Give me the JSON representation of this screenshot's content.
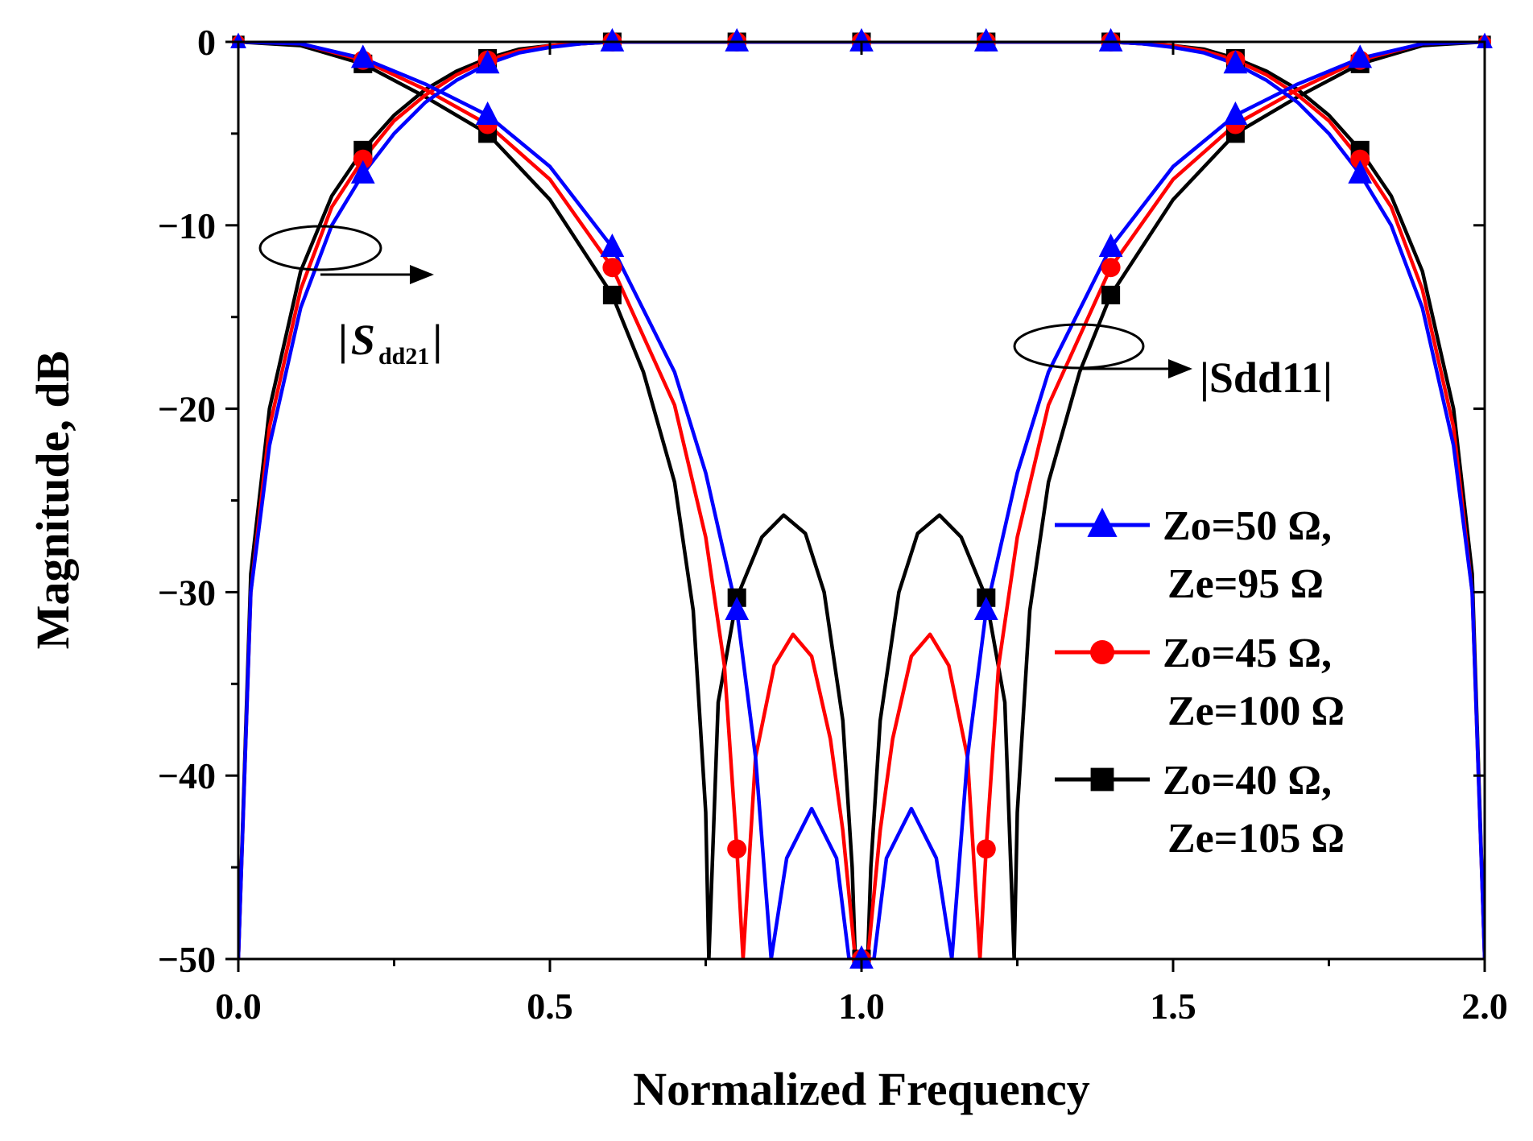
{
  "chart_data": {
    "type": "line",
    "xlabel": "Normalized Frequency",
    "ylabel": "Magnitude, dB",
    "xlim": [
      0,
      2
    ],
    "ylim": [
      -50,
      0
    ],
    "xticks": [
      0.0,
      0.5,
      1.0,
      1.5,
      2.0
    ],
    "xtick_labels": [
      "0.0",
      "0.5",
      "1.0",
      "1.5",
      "2.0"
    ],
    "yticks": [
      0,
      -10,
      -20,
      -30,
      -40,
      -50
    ],
    "ytick_labels": [
      "0",
      "−10",
      "−20",
      "−30",
      "−40",
      "−50"
    ],
    "x_marker_positions": [
      0.2,
      0.4,
      0.6,
      0.8,
      1.0,
      1.2,
      1.4,
      1.6,
      1.8
    ],
    "grid": false,
    "legend_position": "right",
    "series": [
      {
        "name_line1": "Zo=50 Ω,",
        "name_line2": "Ze=95 Ω",
        "color": "#0000ff",
        "marker": "triangle",
        "sdd21": {
          "x": [
            0.0,
            0.02,
            0.05,
            0.1,
            0.15,
            0.2,
            0.25,
            0.3,
            0.35,
            0.4,
            0.45,
            0.5,
            0.55,
            0.6,
            0.7,
            0.8,
            0.9,
            1.0,
            1.1,
            1.2,
            1.3,
            1.4,
            1.45,
            1.5,
            1.55,
            1.6,
            1.65,
            1.7,
            1.75,
            1.8,
            1.85,
            1.9,
            1.95,
            1.98,
            2.0
          ],
          "y": [
            -50,
            -30,
            -22,
            -14.5,
            -10.0,
            -7.2,
            -5.0,
            -3.3,
            -2.1,
            -1.2,
            -0.6,
            -0.3,
            -0.1,
            0,
            0,
            0,
            0,
            0,
            0,
            0,
            0,
            0,
            -0.1,
            -0.3,
            -0.6,
            -1.2,
            -2.1,
            -3.3,
            -5.0,
            -7.2,
            -10.0,
            -14.5,
            -22,
            -30,
            -50
          ]
        },
        "sdd11": {
          "x": [
            0.0,
            0.1,
            0.2,
            0.3,
            0.4,
            0.5,
            0.6,
            0.7,
            0.75,
            0.8,
            0.83,
            0.855,
            0.88,
            0.92,
            0.96,
            0.98,
            1.0,
            1.02,
            1.04,
            1.08,
            1.12,
            1.145,
            1.17,
            1.2,
            1.25,
            1.3,
            1.4,
            1.5,
            1.6,
            1.7,
            1.8,
            1.9,
            2.0
          ],
          "y": [
            0,
            -0.1,
            -0.9,
            -2.3,
            -4.0,
            -6.8,
            -11.2,
            -18.0,
            -23.5,
            -31.0,
            -39.0,
            -50,
            -44.5,
            -41.8,
            -44.5,
            -50,
            -50,
            -50,
            -44.5,
            -41.8,
            -44.5,
            -50,
            -39.0,
            -31.0,
            -23.5,
            -18.0,
            -11.2,
            -6.8,
            -4.0,
            -2.3,
            -0.9,
            -0.1,
            0
          ]
        }
      },
      {
        "name_line1": "Zo=45 Ω,",
        "name_line2": "Ze=100 Ω",
        "color": "#ff0000",
        "marker": "circle",
        "sdd21": {
          "x": [
            0.0,
            0.02,
            0.05,
            0.1,
            0.15,
            0.2,
            0.25,
            0.3,
            0.35,
            0.4,
            0.45,
            0.5,
            0.55,
            0.6,
            0.7,
            0.8,
            0.9,
            1.0,
            1.1,
            1.2,
            1.3,
            1.4,
            1.45,
            1.5,
            1.55,
            1.6,
            1.65,
            1.7,
            1.75,
            1.8,
            1.85,
            1.9,
            1.95,
            1.98,
            2.0
          ],
          "y": [
            -50,
            -30,
            -21,
            -13.5,
            -9.0,
            -6.4,
            -4.3,
            -2.9,
            -1.8,
            -1.0,
            -0.5,
            -0.2,
            -0.1,
            0,
            0,
            0,
            0,
            0,
            0,
            0,
            0,
            0,
            -0.1,
            -0.2,
            -0.5,
            -1.0,
            -1.8,
            -2.9,
            -4.3,
            -6.4,
            -9.0,
            -13.5,
            -21,
            -30,
            -50
          ]
        },
        "sdd11": {
          "x": [
            0.0,
            0.1,
            0.2,
            0.3,
            0.4,
            0.5,
            0.6,
            0.7,
            0.75,
            0.78,
            0.8,
            0.81,
            0.83,
            0.86,
            0.89,
            0.92,
            0.95,
            0.97,
            0.99,
            1.0,
            1.01,
            1.03,
            1.05,
            1.08,
            1.11,
            1.14,
            1.17,
            1.19,
            1.2,
            1.22,
            1.25,
            1.3,
            1.4,
            1.5,
            1.6,
            1.7,
            1.8,
            1.9,
            2.0
          ],
          "y": [
            0,
            -0.1,
            -1.0,
            -2.6,
            -4.5,
            -7.5,
            -12.3,
            -19.8,
            -27.0,
            -34.0,
            -44.0,
            -50,
            -39.0,
            -34.0,
            -32.3,
            -33.5,
            -38.0,
            -43.0,
            -50,
            -50,
            -50,
            -43.0,
            -38.0,
            -33.5,
            -32.3,
            -34.0,
            -39.0,
            -50,
            -44.0,
            -34.0,
            -27.0,
            -19.8,
            -12.3,
            -7.5,
            -4.5,
            -2.6,
            -1.0,
            -0.1,
            0
          ]
        }
      },
      {
        "name_line1": "Zo=40 Ω,",
        "name_line2": "Ze=105 Ω",
        "color": "#000000",
        "marker": "square",
        "sdd21": {
          "x": [
            0.0,
            0.02,
            0.05,
            0.1,
            0.15,
            0.2,
            0.25,
            0.3,
            0.35,
            0.4,
            0.45,
            0.5,
            0.55,
            0.6,
            0.7,
            0.8,
            0.9,
            1.0,
            1.1,
            1.2,
            1.3,
            1.4,
            1.45,
            1.5,
            1.55,
            1.6,
            1.65,
            1.7,
            1.75,
            1.8,
            1.85,
            1.9,
            1.95,
            1.98,
            2.0
          ],
          "y": [
            -50,
            -29,
            -20,
            -12.5,
            -8.4,
            -5.9,
            -4.0,
            -2.6,
            -1.6,
            -0.9,
            -0.4,
            -0.2,
            -0.1,
            0,
            0,
            0,
            0,
            0,
            0,
            0,
            0,
            0,
            -0.1,
            -0.2,
            -0.4,
            -0.9,
            -1.6,
            -2.6,
            -4.0,
            -5.9,
            -8.4,
            -12.5,
            -20,
            -29,
            -50
          ]
        },
        "sdd11": {
          "x": [
            0.0,
            0.1,
            0.2,
            0.3,
            0.4,
            0.5,
            0.6,
            0.65,
            0.7,
            0.73,
            0.75,
            0.755,
            0.77,
            0.8,
            0.84,
            0.875,
            0.91,
            0.94,
            0.97,
            0.985,
            0.99,
            1.0,
            1.01,
            1.015,
            1.03,
            1.06,
            1.09,
            1.125,
            1.16,
            1.2,
            1.23,
            1.245,
            1.25,
            1.27,
            1.3,
            1.35,
            1.4,
            1.5,
            1.6,
            1.7,
            1.8,
            1.9,
            2.0
          ],
          "y": [
            0,
            -0.2,
            -1.2,
            -3.0,
            -5.0,
            -8.6,
            -13.8,
            -18.0,
            -24.0,
            -31.0,
            -42.0,
            -50,
            -36.0,
            -30.3,
            -27.0,
            -25.8,
            -26.8,
            -30.0,
            -37.0,
            -45.0,
            -50,
            -50,
            -50,
            -45.0,
            -37.0,
            -30.0,
            -26.8,
            -25.8,
            -27.0,
            -30.3,
            -36.0,
            -50,
            -42.0,
            -31.0,
            -24.0,
            -18.0,
            -13.8,
            -8.6,
            -5.0,
            -3.0,
            -1.2,
            -0.2,
            0
          ]
        }
      }
    ],
    "annotations": [
      {
        "bar_left": "|",
        "main": "S",
        "sub": "dd21",
        "bar_right": "|"
      },
      {
        "text": "|Sdd11|"
      }
    ]
  }
}
